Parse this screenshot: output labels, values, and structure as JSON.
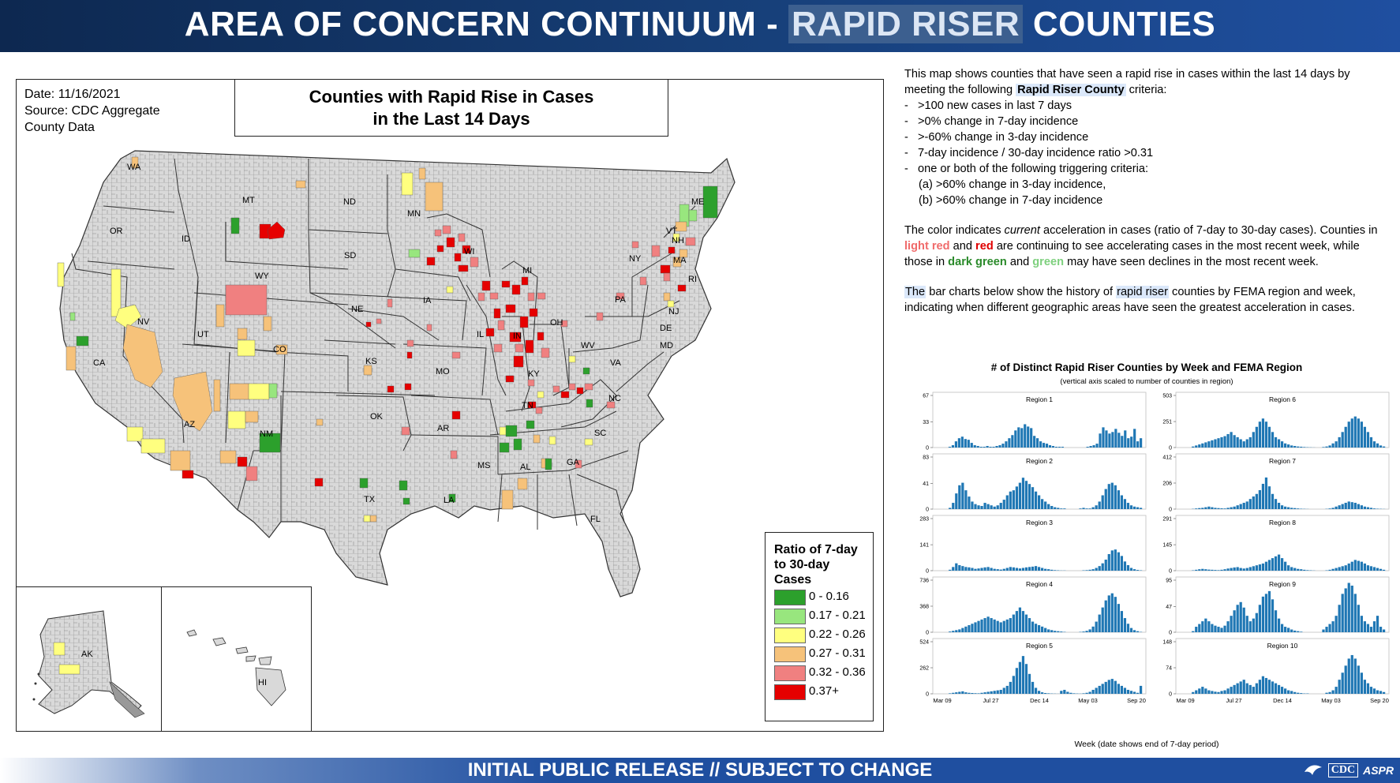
{
  "banner": {
    "title_pre": "AREA OF CONCERN CONTINUUM - ",
    "title_hl": "RAPID RISER",
    "title_post": " COUNTIES"
  },
  "map": {
    "date": "Date: 11/16/2021",
    "source_line1": "Source: CDC Aggregate",
    "source_line2": "County Data",
    "title_line1": "Counties with Rapid Rise in Cases",
    "title_line2": "in the Last 14 Days",
    "state_labels": [
      "WA",
      "OR",
      "CA",
      "ID",
      "NV",
      "MT",
      "WY",
      "UT",
      "AZ",
      "CO",
      "NM",
      "ND",
      "SD",
      "NE",
      "KS",
      "OK",
      "TX",
      "MN",
      "IA",
      "MO",
      "AR",
      "LA",
      "WI",
      "IL",
      "MI",
      "IN",
      "KY",
      "TN",
      "MS",
      "AL",
      "GA",
      "FL",
      "SC",
      "NC",
      "VA",
      "WV",
      "OH",
      "PA",
      "NY",
      "ME",
      "NH",
      "VT",
      "MA",
      "RI",
      "NJ",
      "DE",
      "MD",
      "AK",
      "HI"
    ],
    "legend": {
      "title": "Ratio of 7-day to 30-day Cases",
      "items": [
        {
          "label": "0 - 0.16",
          "color": "#2ca02c"
        },
        {
          "label": "0.17 - 0.21",
          "color": "#98e67e"
        },
        {
          "label": "0.22 - 0.26",
          "color": "#ffff7f"
        },
        {
          "label": "0.27 - 0.31",
          "color": "#f6c27a"
        },
        {
          "label": "0.32 - 0.36",
          "color": "#f08080"
        },
        {
          "label": "0.37+",
          "color": "#e60000"
        }
      ]
    },
    "colors": {
      "land": "#d9d9d9",
      "county_line": "#8a8a8a",
      "state_line": "#333333"
    }
  },
  "description": {
    "intro_a": "This map shows counties that have seen a rapid rise in cases within the last 14 days by meeting the following ",
    "intro_hl": "Rapid Riser County",
    "intro_b": " criteria:",
    "criteria": [
      ">100 new cases in last 7 days",
      ">0% change in 7-day incidence",
      ">-60% change in 3-day incidence",
      "7-day incidence / 30-day incidence ratio >0.31",
      "one or both of the following triggering criteria:"
    ],
    "sub_criteria": [
      "(a) >60% change in 3-day incidence,",
      "(b) >60% change in 7-day incidence"
    ],
    "color_p1_a": "The color indicates ",
    "color_p1_em": "current",
    "color_p1_b": " acceleration in cases (ratio of 7-day to 30-day cases). Counties in ",
    "light_red": "light red",
    "and1": " and ",
    "red": "red",
    "color_p1_c": "  are continuing to see accelerating cases in the most recent week, while those in ",
    "dark_green": "dark green",
    "and2": " and ",
    "green": "green",
    "color_p1_d": "  may have seen declines in the most recent week.",
    "bar_p_hl1": "The",
    "bar_p_a": " bar charts below show the history of ",
    "bar_p_hl2": "rapid riser",
    "bar_p_b": " counties by FEMA region and week, indicating when different geographic areas have seen the greatest acceleration in cases."
  },
  "chart_data": {
    "type": "bar",
    "title": "# of Distinct Rapid Riser Counties by Week and FEMA Region",
    "subtitle": "(vertical axis scaled to number of counties in region)",
    "xlabel": "Week (date shows end of 7-day period)",
    "x_tick_labels": [
      "Mar 09",
      "Jul 27",
      "Dec 14",
      "May 03",
      "Sep 20"
    ],
    "panels": [
      {
        "name": "Region 1",
        "ymax": 67,
        "yticks": [
          0,
          33,
          67
        ],
        "values": [
          0,
          0,
          0,
          0,
          1,
          3,
          8,
          12,
          14,
          11,
          10,
          6,
          3,
          2,
          1,
          1,
          2,
          1,
          1,
          2,
          3,
          5,
          8,
          12,
          16,
          22,
          26,
          25,
          30,
          27,
          25,
          15,
          12,
          8,
          6,
          5,
          3,
          2,
          1,
          1,
          1,
          0,
          0,
          0,
          0,
          0,
          0,
          0,
          1,
          2,
          3,
          5,
          18,
          26,
          22,
          18,
          20,
          24,
          19,
          15,
          22,
          12,
          14,
          24,
          8,
          12
        ]
      },
      {
        "name": "Region 2",
        "ymax": 83,
        "yticks": [
          0,
          41,
          83
        ],
        "values": [
          0,
          0,
          0,
          0,
          2,
          10,
          25,
          38,
          42,
          30,
          20,
          12,
          8,
          6,
          5,
          10,
          8,
          6,
          4,
          6,
          10,
          15,
          22,
          28,
          30,
          36,
          42,
          50,
          45,
          40,
          35,
          28,
          22,
          16,
          12,
          8,
          5,
          3,
          2,
          1,
          1,
          0,
          0,
          0,
          0,
          1,
          2,
          1,
          1,
          3,
          6,
          12,
          22,
          32,
          40,
          42,
          38,
          30,
          22,
          16,
          10,
          6,
          4,
          3,
          2
        ]
      },
      {
        "name": "Region 3",
        "ymax": 283,
        "yticks": [
          0,
          141,
          283
        ],
        "values": [
          0,
          0,
          0,
          0,
          5,
          20,
          40,
          30,
          25,
          20,
          18,
          15,
          10,
          12,
          15,
          18,
          20,
          15,
          10,
          8,
          6,
          10,
          15,
          20,
          18,
          15,
          12,
          15,
          18,
          20,
          22,
          25,
          20,
          15,
          10,
          8,
          5,
          3,
          2,
          1,
          1,
          0,
          0,
          0,
          0,
          0,
          2,
          3,
          5,
          8,
          15,
          25,
          40,
          60,
          90,
          110,
          115,
          100,
          80,
          50,
          30,
          15,
          8,
          4,
          2
        ]
      },
      {
        "name": "Region 4",
        "ymax": 736,
        "yticks": [
          0,
          368,
          736
        ],
        "values": [
          0,
          0,
          0,
          0,
          10,
          20,
          30,
          40,
          60,
          80,
          100,
          120,
          140,
          160,
          180,
          200,
          220,
          200,
          180,
          160,
          140,
          160,
          180,
          200,
          250,
          300,
          350,
          300,
          250,
          200,
          150,
          120,
          100,
          80,
          60,
          40,
          30,
          20,
          15,
          10,
          5,
          0,
          0,
          0,
          0,
          5,
          10,
          20,
          40,
          80,
          150,
          250,
          350,
          450,
          520,
          550,
          500,
          400,
          300,
          200,
          120,
          60,
          30,
          15,
          5
        ]
      },
      {
        "name": "Region 5",
        "ymax": 524,
        "yticks": [
          0,
          262,
          524
        ],
        "values": [
          0,
          0,
          0,
          0,
          5,
          10,
          15,
          20,
          25,
          15,
          10,
          8,
          6,
          5,
          10,
          15,
          20,
          25,
          30,
          35,
          40,
          60,
          80,
          120,
          180,
          260,
          320,
          380,
          300,
          200,
          120,
          60,
          30,
          15,
          8,
          5,
          3,
          2,
          1,
          30,
          40,
          20,
          10,
          5,
          3,
          2,
          5,
          10,
          20,
          40,
          60,
          80,
          100,
          120,
          140,
          150,
          130,
          100,
          80,
          60,
          40,
          30,
          20,
          10,
          80
        ]
      },
      {
        "name": "Region 6",
        "ymax": 503,
        "yticks": [
          0,
          251,
          503
        ],
        "values": [
          0,
          0,
          0,
          0,
          10,
          20,
          30,
          40,
          50,
          60,
          70,
          80,
          90,
          100,
          110,
          130,
          150,
          120,
          100,
          80,
          60,
          80,
          100,
          150,
          200,
          250,
          280,
          250,
          200,
          150,
          100,
          80,
          60,
          40,
          30,
          20,
          15,
          10,
          8,
          5,
          3,
          2,
          1,
          0,
          0,
          5,
          10,
          20,
          40,
          60,
          100,
          150,
          200,
          250,
          280,
          300,
          280,
          250,
          200,
          150,
          100,
          60,
          40,
          20,
          10
        ]
      },
      {
        "name": "Region 7",
        "ymax": 412,
        "yticks": [
          0,
          206,
          412
        ],
        "values": [
          0,
          0,
          0,
          0,
          2,
          5,
          8,
          10,
          15,
          20,
          15,
          10,
          8,
          6,
          5,
          10,
          15,
          20,
          30,
          40,
          50,
          60,
          80,
          100,
          120,
          150,
          200,
          250,
          180,
          120,
          80,
          50,
          30,
          20,
          15,
          10,
          8,
          5,
          3,
          2,
          1,
          0,
          0,
          0,
          0,
          0,
          2,
          5,
          10,
          20,
          30,
          40,
          50,
          60,
          55,
          50,
          40,
          30,
          20,
          15,
          10,
          5,
          3,
          2,
          1
        ]
      },
      {
        "name": "Region 8",
        "ymax": 291,
        "yticks": [
          0,
          145,
          291
        ],
        "values": [
          0,
          0,
          0,
          0,
          2,
          5,
          8,
          10,
          8,
          6,
          5,
          4,
          3,
          5,
          8,
          12,
          15,
          18,
          20,
          15,
          12,
          15,
          20,
          25,
          30,
          35,
          40,
          50,
          60,
          70,
          80,
          90,
          70,
          50,
          30,
          20,
          15,
          10,
          8,
          5,
          3,
          2,
          1,
          0,
          0,
          0,
          2,
          5,
          10,
          15,
          20,
          25,
          30,
          40,
          50,
          60,
          55,
          50,
          40,
          30,
          25,
          20,
          15,
          10,
          5
        ]
      },
      {
        "name": "Region 9",
        "ymax": 95,
        "yticks": [
          0,
          47,
          95
        ],
        "values": [
          0,
          0,
          0,
          0,
          2,
          10,
          15,
          20,
          25,
          20,
          15,
          12,
          10,
          8,
          12,
          20,
          30,
          40,
          50,
          55,
          45,
          30,
          20,
          25,
          35,
          50,
          65,
          70,
          75,
          60,
          40,
          25,
          15,
          10,
          8,
          5,
          3,
          2,
          1,
          0,
          0,
          0,
          0,
          0,
          0,
          5,
          10,
          15,
          20,
          30,
          50,
          70,
          80,
          90,
          85,
          70,
          50,
          30,
          20,
          15,
          10,
          20,
          30,
          10,
          5
        ]
      },
      {
        "name": "Region 10",
        "ymax": 148,
        "yticks": [
          0,
          74,
          148
        ],
        "values": [
          0,
          0,
          0,
          0,
          5,
          10,
          15,
          20,
          15,
          10,
          8,
          6,
          5,
          8,
          10,
          15,
          20,
          25,
          30,
          35,
          40,
          30,
          25,
          20,
          30,
          40,
          50,
          45,
          40,
          35,
          30,
          25,
          20,
          15,
          10,
          8,
          5,
          3,
          2,
          1,
          1,
          0,
          0,
          0,
          0,
          0,
          3,
          5,
          10,
          20,
          40,
          60,
          80,
          100,
          110,
          100,
          80,
          60,
          40,
          30,
          20,
          15,
          10,
          8,
          5
        ]
      }
    ]
  },
  "footer": {
    "text": "INITIAL PUBLIC RELEASE // SUBJECT TO CHANGE",
    "logo_cdc": "CDC",
    "logo_aspr": "ASPR"
  }
}
